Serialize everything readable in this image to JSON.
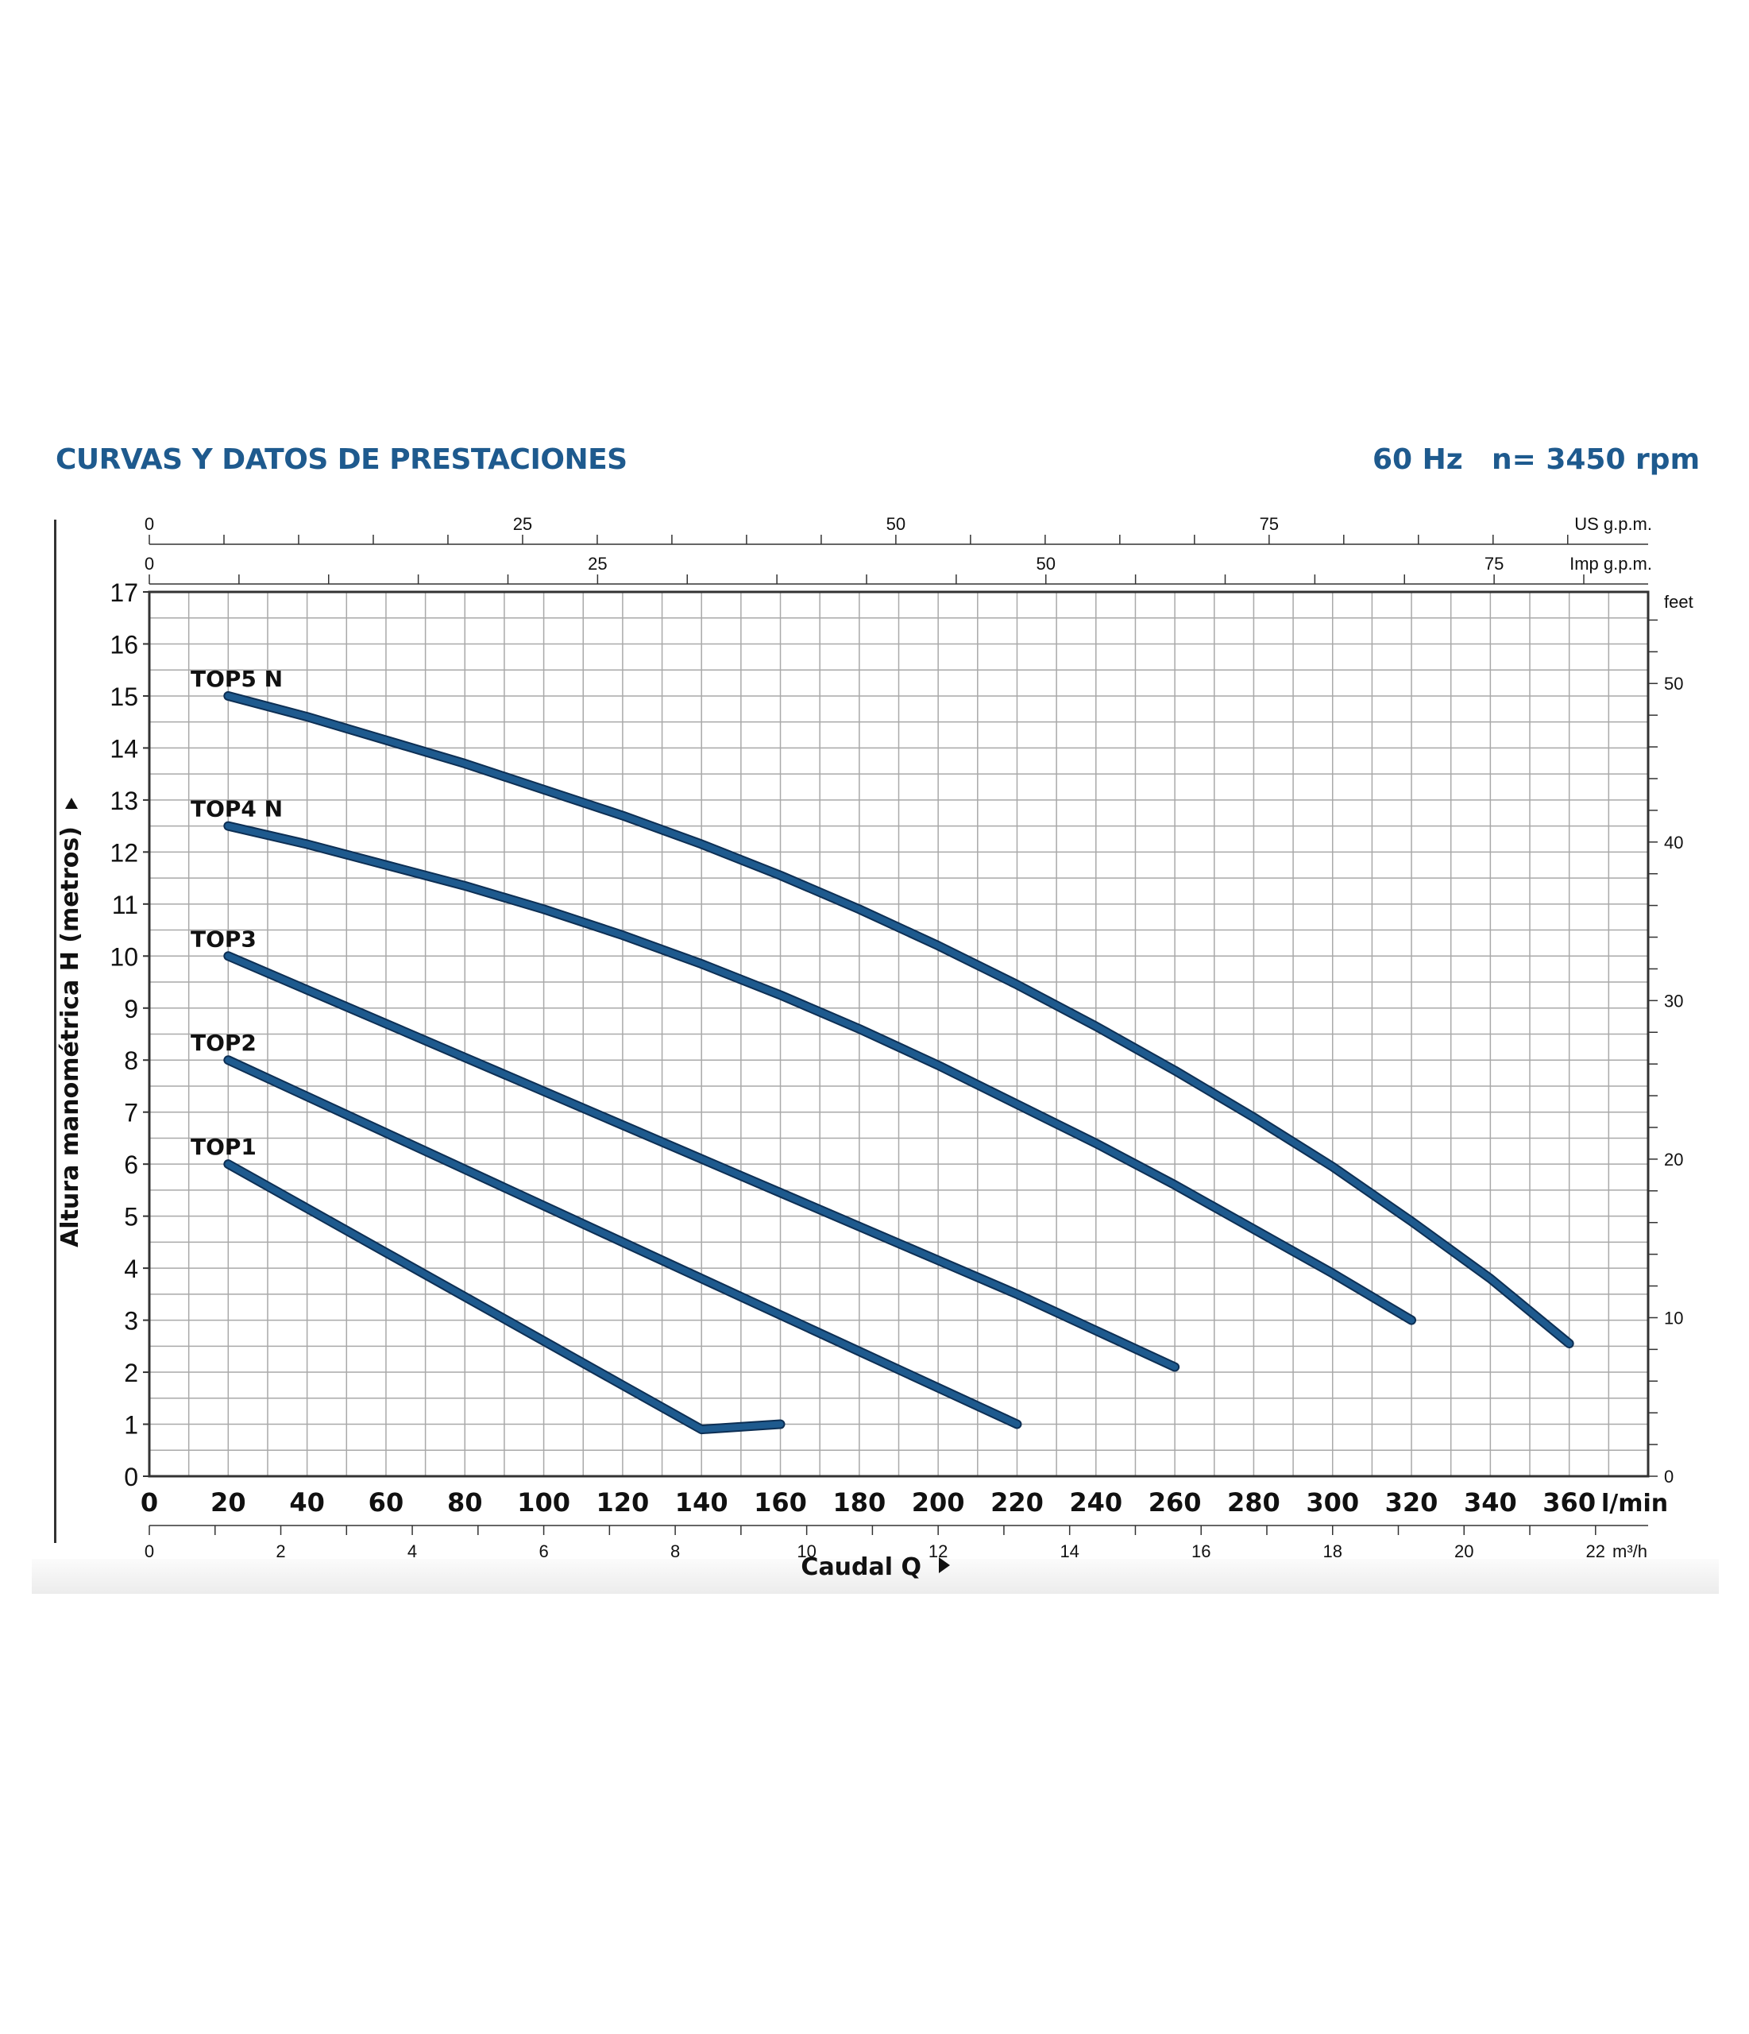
{
  "header": {
    "title": "CURVAS Y DATOS DE PRESTACIONES",
    "frequency": "60 Hz",
    "speed": "n= 3450 rpm"
  },
  "colors": {
    "accent": "#1e5a8e",
    "curve": "#1e5a8e",
    "curve_outline": "#0d2f54",
    "grid": "#a9a9a9"
  },
  "chart_data": {
    "type": "line",
    "title": "",
    "xlabel": "Caudal Q",
    "ylabel": "Altura manométrica H (metros)",
    "xunit": "l/min",
    "xlim": [
      0,
      380
    ],
    "ylim": [
      0,
      17
    ],
    "x_ticks": [
      0,
      20,
      40,
      60,
      80,
      100,
      120,
      140,
      160,
      180,
      200,
      220,
      240,
      260,
      280,
      300,
      320,
      340,
      360
    ],
    "y_ticks": [
      0,
      1,
      2,
      3,
      4,
      5,
      6,
      7,
      8,
      9,
      10,
      11,
      12,
      13,
      14,
      15,
      16,
      17
    ],
    "grid": true,
    "secondary_axes": {
      "us_gpm": {
        "unit": "US g.p.m.",
        "ticks": [
          0,
          25,
          50,
          75
        ]
      },
      "imp_gpm": {
        "unit": "Imp g.p.m.",
        "ticks": [
          0,
          25,
          50,
          75
        ]
      },
      "m3h": {
        "unit": "m³/h",
        "ticks": [
          0,
          2,
          4,
          6,
          8,
          10,
          12,
          14,
          16,
          18,
          20,
          22
        ]
      },
      "feet": {
        "unit": "feet",
        "ticks": [
          0,
          10,
          20,
          30,
          40,
          50
        ]
      }
    },
    "series": [
      {
        "name": "TOP5 N",
        "x": [
          20,
          40,
          60,
          80,
          100,
          120,
          140,
          160,
          180,
          200,
          220,
          240,
          260,
          280,
          300,
          320,
          340,
          360
        ],
        "y": [
          15.0,
          14.6,
          14.15,
          13.7,
          13.2,
          12.7,
          12.15,
          11.55,
          10.9,
          10.2,
          9.45,
          8.65,
          7.8,
          6.9,
          5.95,
          4.9,
          3.8,
          2.55
        ]
      },
      {
        "name": "TOP4 N",
        "x": [
          20,
          40,
          60,
          80,
          100,
          120,
          140,
          160,
          180,
          200,
          220,
          240,
          260,
          280,
          300,
          320
        ],
        "y": [
          12.5,
          12.15,
          11.75,
          11.35,
          10.9,
          10.4,
          9.85,
          9.25,
          8.6,
          7.9,
          7.15,
          6.4,
          5.6,
          4.75,
          3.9,
          3.0
        ]
      },
      {
        "name": "TOP3",
        "x": [
          20,
          40,
          60,
          80,
          100,
          120,
          140,
          160,
          180,
          200,
          220,
          240,
          260
        ],
        "y": [
          10.0,
          9.35,
          8.7,
          8.05,
          7.4,
          6.75,
          6.1,
          5.45,
          4.8,
          4.15,
          3.5,
          2.8,
          2.1
        ]
      },
      {
        "name": "TOP2",
        "x": [
          20,
          40,
          60,
          80,
          100,
          120,
          140,
          160,
          180,
          200,
          220
        ],
        "y": [
          8.0,
          7.3,
          6.6,
          5.9,
          5.2,
          4.5,
          3.8,
          3.1,
          2.4,
          1.7,
          1.0
        ]
      },
      {
        "name": "TOP1",
        "x": [
          20,
          40,
          60,
          80,
          100,
          120,
          140,
          160
        ],
        "y": [
          6.0,
          5.15,
          4.3,
          3.45,
          2.6,
          1.75,
          0.9,
          1.0
        ]
      }
    ]
  }
}
